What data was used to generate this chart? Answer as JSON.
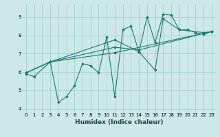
{
  "xlabel": "Humidex (Indice chaleur)",
  "ylabel": "",
  "background_color": "#cce8e8",
  "grid_color": "#99cccc",
  "line_color": "#1a7a6e",
  "xlim": [
    -0.5,
    23.5
  ],
  "ylim": [
    3.8,
    9.7
  ],
  "yticks": [
    4,
    5,
    6,
    7,
    8,
    9
  ],
  "xticks": [
    0,
    1,
    2,
    3,
    4,
    5,
    6,
    7,
    8,
    9,
    10,
    11,
    12,
    13,
    14,
    15,
    16,
    17,
    18,
    19,
    20,
    21,
    22,
    23
  ],
  "series": [
    {
      "x": [
        0,
        1,
        3,
        4,
        5,
        6,
        7,
        8,
        9,
        10,
        11,
        12,
        13,
        14,
        15,
        16,
        17,
        18,
        19,
        20,
        21,
        22,
        23
      ],
      "y": [
        5.9,
        5.75,
        6.55,
        4.35,
        4.65,
        5.25,
        6.45,
        6.35,
        5.95,
        7.9,
        4.65,
        8.3,
        8.5,
        7.1,
        9.0,
        7.6,
        9.15,
        9.1,
        8.3,
        8.3,
        8.15,
        8.05,
        8.2
      ]
    },
    {
      "x": [
        0,
        3,
        11,
        14,
        16,
        17,
        19,
        22,
        23
      ],
      "y": [
        5.95,
        6.55,
        7.75,
        7.1,
        6.1,
        8.9,
        8.3,
        8.15,
        8.2
      ]
    },
    {
      "x": [
        0,
        3,
        11,
        14,
        22,
        23
      ],
      "y": [
        5.95,
        6.55,
        7.35,
        7.2,
        8.1,
        8.2
      ]
    },
    {
      "x": [
        0,
        3,
        11,
        23
      ],
      "y": [
        5.95,
        6.55,
        7.05,
        8.2
      ]
    }
  ]
}
